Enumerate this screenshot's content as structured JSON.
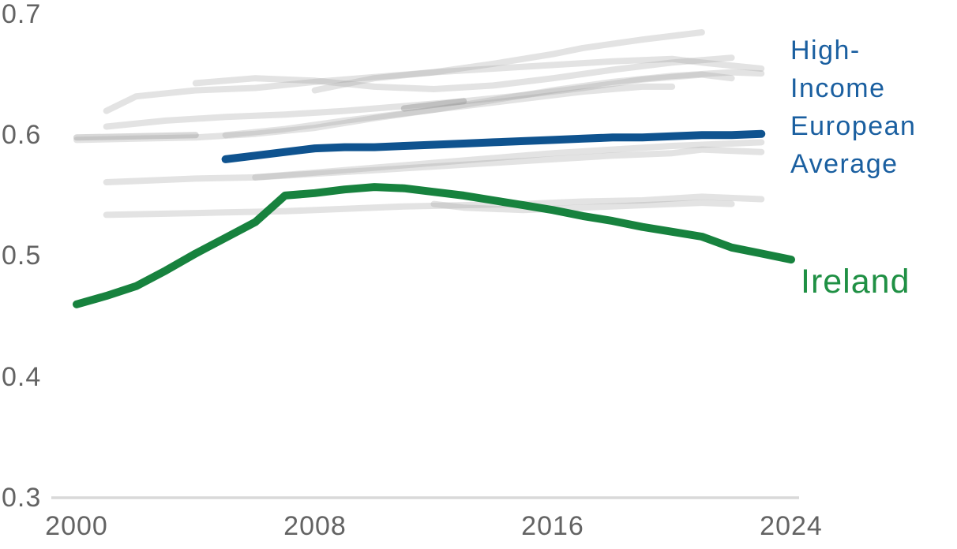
{
  "chart_data": {
    "type": "line",
    "title": "",
    "xlabel": "",
    "ylabel": "",
    "grid": false,
    "background_color": "#ffffff",
    "axis_color": "#d9d9d9",
    "tick_color": "#636363",
    "x_axis": {
      "range": [
        2000,
        2024
      ],
      "tick_labels": [
        "2000",
        "2008",
        "2016",
        "2024"
      ],
      "tick_values": [
        2000,
        2008,
        2016,
        2024
      ]
    },
    "y_axis": {
      "range": [
        0.3,
        0.7
      ],
      "tick_labels": [
        "0.7",
        "0.6",
        "0.5",
        "0.4",
        "0.3"
      ],
      "tick_values": [
        0.7,
        0.6,
        0.5,
        0.4,
        0.3
      ]
    },
    "series": [
      {
        "id": "background-1",
        "name": "background line 1",
        "color": "#9a9a9a",
        "opacity": 0.28,
        "width": 8,
        "x": [
          2000,
          2002,
          2004,
          2006,
          2008,
          2010,
          2012,
          2014,
          2016,
          2018,
          2020,
          2022,
          2023
        ],
        "values": [
          0.596,
          0.597,
          0.598,
          0.601,
          0.606,
          0.614,
          0.621,
          0.629,
          0.637,
          0.644,
          0.649,
          0.652,
          0.651
        ]
      },
      {
        "id": "background-2",
        "name": "background line 2",
        "color": "#9a9a9a",
        "opacity": 0.28,
        "width": 8,
        "x": [
          2001,
          2002,
          2004,
          2006,
          2008,
          2010,
          2012,
          2014,
          2016,
          2018,
          2020,
          2021,
          2023
        ],
        "values": [
          0.62,
          0.632,
          0.637,
          0.639,
          0.644,
          0.648,
          0.652,
          0.655,
          0.658,
          0.661,
          0.663,
          0.66,
          0.655
        ]
      },
      {
        "id": "background-3",
        "name": "background line 3",
        "color": "#9a9a9a",
        "opacity": 0.28,
        "width": 8,
        "x": [
          2001,
          2003,
          2005,
          2007,
          2009,
          2011,
          2013,
          2015,
          2017,
          2019,
          2021,
          2022
        ],
        "values": [
          0.607,
          0.612,
          0.615,
          0.617,
          0.62,
          0.624,
          0.628,
          0.633,
          0.639,
          0.646,
          0.65,
          0.647
        ]
      },
      {
        "id": "background-4",
        "name": "background line 4",
        "color": "#9a9a9a",
        "opacity": 0.28,
        "width": 8,
        "x": [
          2008,
          2010,
          2012,
          2014,
          2016,
          2017,
          2019,
          2021
        ],
        "values": [
          0.637,
          0.647,
          0.652,
          0.659,
          0.667,
          0.672,
          0.679,
          0.685
        ]
      },
      {
        "id": "background-5",
        "name": "background line 5",
        "color": "#9a9a9a",
        "opacity": 0.28,
        "width": 8,
        "x": [
          2001,
          2002,
          2004,
          2006,
          2008,
          2010,
          2012,
          2014,
          2016,
          2018,
          2020,
          2021,
          2023
        ],
        "values": [
          0.561,
          0.562,
          0.564,
          0.565,
          0.568,
          0.571,
          0.574,
          0.577,
          0.58,
          0.583,
          0.585,
          0.588,
          0.586
        ]
      },
      {
        "id": "background-6",
        "name": "background line 6",
        "color": "#9a9a9a",
        "opacity": 0.28,
        "width": 8,
        "x": [
          2001,
          2003,
          2005,
          2007,
          2009,
          2011,
          2013,
          2015,
          2017,
          2019,
          2021,
          2023
        ],
        "values": [
          0.534,
          0.535,
          0.536,
          0.537,
          0.539,
          0.541,
          0.542,
          0.543,
          0.545,
          0.546,
          0.549,
          0.547
        ]
      },
      {
        "id": "background-7",
        "name": "background line 7",
        "color": "#9a9a9a",
        "opacity": 0.28,
        "width": 8,
        "x": [
          2012,
          2013,
          2015,
          2017,
          2019,
          2021,
          2022
        ],
        "values": [
          0.543,
          0.54,
          0.538,
          0.54,
          0.542,
          0.544,
          0.543
        ]
      },
      {
        "id": "background-8",
        "name": "background short segment high",
        "color": "#8f8f8f",
        "opacity": 0.42,
        "width": 8,
        "x": [
          2011,
          2013
        ],
        "values": [
          0.622,
          0.628
        ]
      },
      {
        "id": "background-9",
        "name": "background line 9",
        "color": "#9a9a9a",
        "opacity": 0.28,
        "width": 8,
        "x": [
          2005,
          2007,
          2009,
          2011,
          2013,
          2015,
          2017,
          2019,
          2020
        ],
        "values": [
          0.6,
          0.605,
          0.612,
          0.618,
          0.624,
          0.63,
          0.636,
          0.64,
          0.64
        ]
      },
      {
        "id": "background-10",
        "name": "background line 10",
        "color": "#9a9a9a",
        "opacity": 0.28,
        "width": 8,
        "x": [
          2004,
          2006,
          2008,
          2010,
          2012,
          2014,
          2016,
          2018,
          2020,
          2022
        ],
        "values": [
          0.643,
          0.647,
          0.645,
          0.64,
          0.638,
          0.641,
          0.647,
          0.654,
          0.66,
          0.664
        ]
      },
      {
        "id": "background-11",
        "name": "background line 11",
        "color": "#9a9a9a",
        "opacity": 0.28,
        "width": 8,
        "x": [
          2006,
          2008,
          2010,
          2012,
          2014,
          2016,
          2018,
          2020,
          2022,
          2023
        ],
        "values": [
          0.565,
          0.569,
          0.573,
          0.577,
          0.581,
          0.585,
          0.588,
          0.591,
          0.593,
          0.594
        ]
      },
      {
        "id": "background-12",
        "name": "background short segment left",
        "color": "#8f8f8f",
        "opacity": 0.35,
        "width": 8,
        "x": [
          2000,
          2004
        ],
        "values": [
          0.598,
          0.6
        ]
      },
      {
        "id": "high-income-european-average",
        "name": "High-Income European Average",
        "color": "#0f538f",
        "opacity": 1,
        "width": 10,
        "x": [
          2005,
          2006,
          2007,
          2008,
          2009,
          2010,
          2011,
          2012,
          2013,
          2014,
          2015,
          2016,
          2017,
          2018,
          2019,
          2020,
          2021,
          2022,
          2023
        ],
        "values": [
          0.58,
          0.583,
          0.586,
          0.589,
          0.59,
          0.59,
          0.591,
          0.592,
          0.593,
          0.594,
          0.595,
          0.596,
          0.597,
          0.598,
          0.598,
          0.599,
          0.6,
          0.6,
          0.601
        ]
      },
      {
        "id": "ireland",
        "name": "Ireland",
        "color": "#17823e",
        "opacity": 1,
        "width": 10,
        "x": [
          2000,
          2001,
          2002,
          2003,
          2004,
          2005,
          2006,
          2007,
          2008,
          2009,
          2010,
          2011,
          2012,
          2013,
          2014,
          2015,
          2016,
          2017,
          2018,
          2019,
          2020,
          2021,
          2022,
          2023,
          2024
        ],
        "values": [
          0.46,
          0.467,
          0.475,
          0.488,
          0.502,
          0.515,
          0.528,
          0.55,
          0.552,
          0.555,
          0.557,
          0.556,
          0.553,
          0.55,
          0.546,
          0.542,
          0.538,
          0.533,
          0.529,
          0.524,
          0.52,
          0.516,
          0.507,
          0.502,
          0.497
        ]
      }
    ],
    "annotations": [
      {
        "text": "High-\nIncome\nEuropean\nAverage",
        "color": "#1a5fa0",
        "series": "High-Income European Average",
        "position": "right-of-line-end"
      },
      {
        "text": "Ireland",
        "color": "#1f9044",
        "series": "Ireland",
        "position": "right-of-line-end"
      }
    ],
    "legend_position": "right-annotations"
  }
}
